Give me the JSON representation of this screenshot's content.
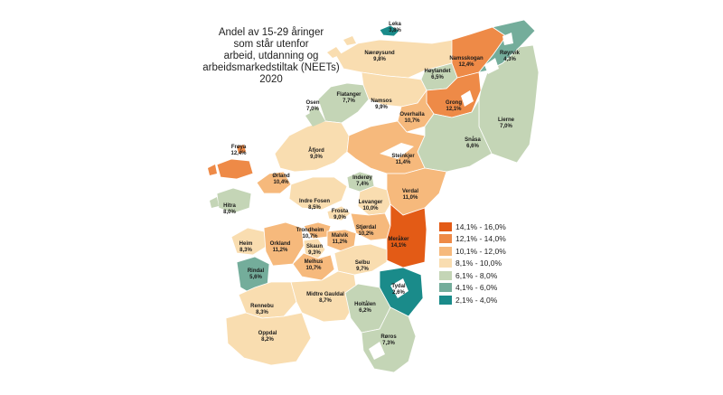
{
  "title": "Andel av 15-29 åringer\nsom står utenfor\narbeid, utdanning og\narbeidsmarkedstiltak (NEETs)\n2020",
  "legend": [
    {
      "label": "14,1% - 16,0%",
      "color": "#e35b16"
    },
    {
      "label": "12,1% - 14,0%",
      "color": "#ee8a47"
    },
    {
      "label": "10,1% - 12,0%",
      "color": "#f6b97c"
    },
    {
      "label": "8,1% - 10,0%",
      "color": "#f9ddb0"
    },
    {
      "label": "6,1% - 8,0%",
      "color": "#c4d5b6"
    },
    {
      "label": "4,1% - 6,0%",
      "color": "#74ad9b"
    },
    {
      "label": "2,1% - 4,0%",
      "color": "#1a8b8a"
    }
  ],
  "municipalities": [
    {
      "name": "Leka",
      "value": "3,8%",
      "color": "#1a8b8a"
    },
    {
      "name": "Nærøysund",
      "value": "9,8%",
      "color": "#f9ddb0"
    },
    {
      "name": "Namsskogan",
      "value": "12,4%",
      "color": "#ee8a47"
    },
    {
      "name": "Røyrvik",
      "value": "4,3%",
      "color": "#74ad9b"
    },
    {
      "name": "Høylandet",
      "value": "6,5%",
      "color": "#c4d5b6"
    },
    {
      "name": "Flatanger",
      "value": "7,7%",
      "color": "#c4d5b6"
    },
    {
      "name": "Osen",
      "value": "7,0%",
      "color": "#c4d5b6"
    },
    {
      "name": "Namsos",
      "value": "9,9%",
      "color": "#f9ddb0"
    },
    {
      "name": "Grong",
      "value": "12,1%",
      "color": "#ee8a47"
    },
    {
      "name": "Overhalla",
      "value": "10,7%",
      "color": "#f6b97c"
    },
    {
      "name": "Lierne",
      "value": "7,0%",
      "color": "#c4d5b6"
    },
    {
      "name": "Snåsa",
      "value": "6,6%",
      "color": "#c4d5b6"
    },
    {
      "name": "Frøya",
      "value": "12,4%",
      "color": "#ee8a47"
    },
    {
      "name": "Åfjord",
      "value": "9,0%",
      "color": "#f9ddb0"
    },
    {
      "name": "Steinkjer",
      "value": "11,4%",
      "color": "#f6b97c"
    },
    {
      "name": "Ørland",
      "value": "10,4%",
      "color": "#f6b97c"
    },
    {
      "name": "Inderøy",
      "value": "7,4%",
      "color": "#c4d5b6"
    },
    {
      "name": "Verdal",
      "value": "11,0%",
      "color": "#f6b97c"
    },
    {
      "name": "Hitra",
      "value": "8,0%",
      "color": "#c4d5b6"
    },
    {
      "name": "Indre Fosen",
      "value": "8,5%",
      "color": "#f9ddb0"
    },
    {
      "name": "Levanger",
      "value": "10,0%",
      "color": "#f9ddb0"
    },
    {
      "name": "Frosta",
      "value": "9,0%",
      "color": "#f9ddb0"
    },
    {
      "name": "Stjørdal",
      "value": "10,2%",
      "color": "#f6b97c"
    },
    {
      "name": "Trondheim",
      "value": "10,7%",
      "color": "#f6b97c"
    },
    {
      "name": "Meråker",
      "value": "14,1%",
      "color": "#e35b16"
    },
    {
      "name": "Heim",
      "value": "8,3%",
      "color": "#f9ddb0"
    },
    {
      "name": "Orkland",
      "value": "11,2%",
      "color": "#f6b97c"
    },
    {
      "name": "Skaun",
      "value": "9,3%",
      "color": "#f9ddb0"
    },
    {
      "name": "Malvik",
      "value": "11,2%",
      "color": "#f6b97c"
    },
    {
      "name": "Melhus",
      "value": "10,7%",
      "color": "#f6b97c"
    },
    {
      "name": "Selbu",
      "value": "9,7%",
      "color": "#f9ddb0"
    },
    {
      "name": "Rindal",
      "value": "5,6%",
      "color": "#74ad9b"
    },
    {
      "name": "Tydal",
      "value": "2,6%",
      "color": "#1a8b8a"
    },
    {
      "name": "Rennebu",
      "value": "8,3%",
      "color": "#f9ddb0"
    },
    {
      "name": "Midtre Gauldal",
      "value": "8,7%",
      "color": "#f9ddb0"
    },
    {
      "name": "Holtålen",
      "value": "6,2%",
      "color": "#c4d5b6"
    },
    {
      "name": "Oppdal",
      "value": "8,2%",
      "color": "#f9ddb0"
    },
    {
      "name": "Røros",
      "value": "7,3%",
      "color": "#c4d5b6"
    }
  ]
}
